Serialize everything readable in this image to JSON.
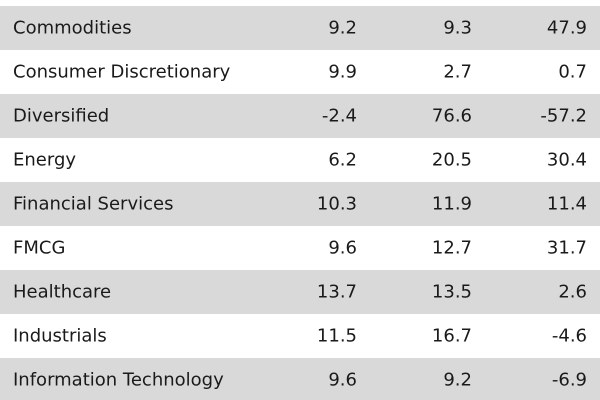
{
  "table": {
    "rows": [
      {
        "sector": "Commodities",
        "c1": "9.2",
        "c2": "9.3",
        "c3": "47.9"
      },
      {
        "sector": "Consumer Discretionary",
        "c1": "9.9",
        "c2": "2.7",
        "c3": "0.7"
      },
      {
        "sector": "Diversified",
        "c1": "-2.4",
        "c2": "76.6",
        "c3": "-57.2"
      },
      {
        "sector": "Energy",
        "c1": "6.2",
        "c2": "20.5",
        "c3": "30.4"
      },
      {
        "sector": "Financial Services",
        "c1": "10.3",
        "c2": "11.9",
        "c3": "11.4"
      },
      {
        "sector": "FMCG",
        "c1": "9.6",
        "c2": "12.7",
        "c3": "31.7"
      },
      {
        "sector": "Healthcare",
        "c1": "13.7",
        "c2": "13.5",
        "c3": "2.6"
      },
      {
        "sector": "Industrials",
        "c1": "11.5",
        "c2": "16.7",
        "c3": "-4.6"
      },
      {
        "sector": "Information Technology",
        "c1": "9.6",
        "c2": "9.2",
        "c3": "-6.9"
      }
    ]
  }
}
